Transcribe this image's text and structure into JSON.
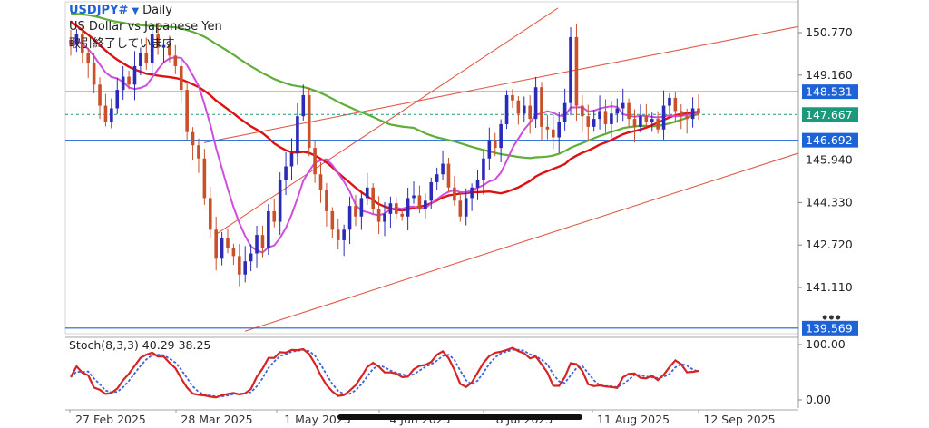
{
  "header": {
    "symbol": "USDJPY#",
    "timeframe": "Daily",
    "description": "US Dollar vs Japanese Yen",
    "notice": "取引終了しています"
  },
  "chart_data": {
    "type": "candlestick",
    "price_axis_ticks": [
      "150.770",
      "149.160",
      "145.940",
      "144.330",
      "142.720",
      "141.110"
    ],
    "price_range": [
      139.2,
      151.8
    ],
    "horizontal_levels": [
      {
        "label": "148.531",
        "value": 148.531,
        "color": "#1e63d6"
      },
      {
        "label": "146.692",
        "value": 146.692,
        "color": "#1e63d6"
      },
      {
        "label": "139.569",
        "value": 139.569,
        "color": "#1e63d6"
      }
    ],
    "current_price": {
      "label": "147.667",
      "value": 147.667,
      "color": "#1a9a7a"
    },
    "date_labels": [
      "27 Feb 2025",
      "28 Mar 2025",
      "1 May 2025",
      "4 Jun 2025",
      "8 Jul 2025",
      "11 Aug 2025",
      "12 Sep 2025"
    ],
    "candles_close_path": [
      150.3,
      150.7,
      150.0,
      149.6,
      148.8,
      148.0,
      147.4,
      147.9,
      148.6,
      149.1,
      148.8,
      149.5,
      150.0,
      149.6,
      150.7,
      150.2,
      150.3,
      149.9,
      149.5,
      148.6,
      147.0,
      146.5,
      146.0,
      144.5,
      143.3,
      142.2,
      143.0,
      142.6,
      142.3,
      141.6,
      142.1,
      142.4,
      143.1,
      142.6,
      144.0,
      143.6,
      145.2,
      145.7,
      146.2,
      147.6,
      148.4,
      146.4,
      145.4,
      144.8,
      144.0,
      143.3,
      142.9,
      143.3,
      144.2,
      143.8,
      144.5,
      144.9,
      144.1,
      143.6,
      143.9,
      144.3,
      143.9,
      143.8,
      144.5,
      144.6,
      144.1,
      144.4,
      145.1,
      145.4,
      145.8,
      144.9,
      144.4,
      143.8,
      144.5,
      144.9,
      145.2,
      146.0,
      146.7,
      146.4,
      147.3,
      148.4,
      148.2,
      147.7,
      148.0,
      147.5,
      148.7,
      147.2,
      147.1,
      146.8,
      147.4,
      148.1,
      150.6,
      148.0,
      147.6,
      147.2,
      147.5,
      147.8,
      147.3,
      147.7,
      147.9,
      148.1,
      147.5,
      147.2,
      147.6,
      147.4,
      147.5,
      147.1,
      148.0,
      148.3,
      147.8,
      147.6,
      147.5,
      147.9,
      147.7
    ],
    "moving_averages": [
      {
        "color": "#d04de0"
      },
      {
        "color": "#dd1111"
      },
      {
        "color": "#5fae3a"
      }
    ],
    "channel_color": "#e05a4a",
    "stochastic": {
      "label": "Stoch(8,3,3) 40.29 38.25",
      "k": 40.29,
      "d": 38.25,
      "ticks": [
        "100.00",
        "0.00"
      ],
      "main_color": "#d42424",
      "signal_color": "#3f63d8"
    }
  }
}
